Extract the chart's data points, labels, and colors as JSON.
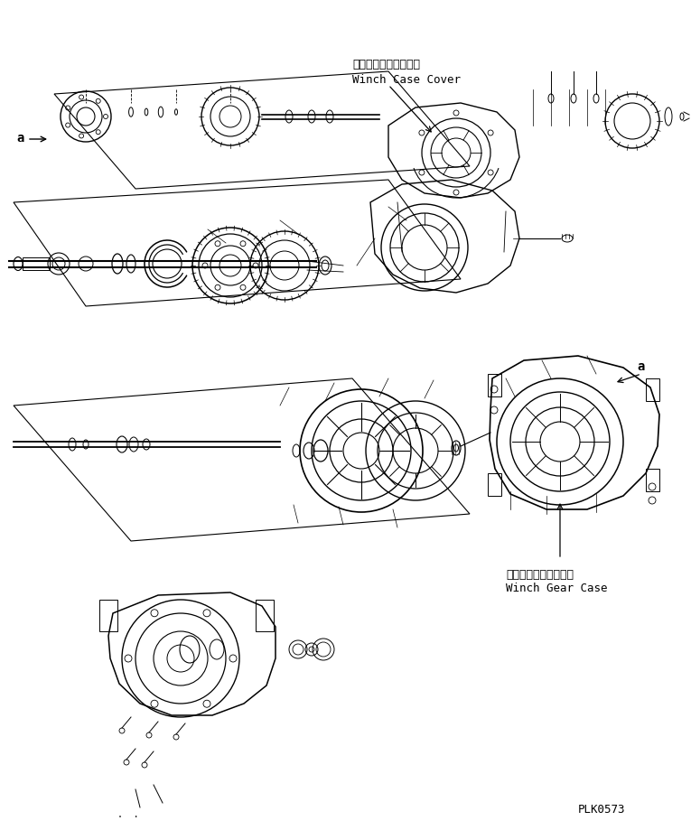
{
  "bg_color": "#ffffff",
  "line_color": "#000000",
  "fig_width": 7.65,
  "fig_height": 9.2,
  "dpi": 100,
  "label_winch_case_cover_jp": "ウインチケースカバー",
  "label_winch_case_cover_en": "Winch Case Cover",
  "label_winch_gear_case_jp": "ウインチギヤーケース",
  "label_winch_gear_case_en": "Winch Gear Case",
  "label_a1": "a",
  "label_a2": "a",
  "label_plk": "PLK0573",
  "font_size_label": 9,
  "font_size_plk": 9
}
